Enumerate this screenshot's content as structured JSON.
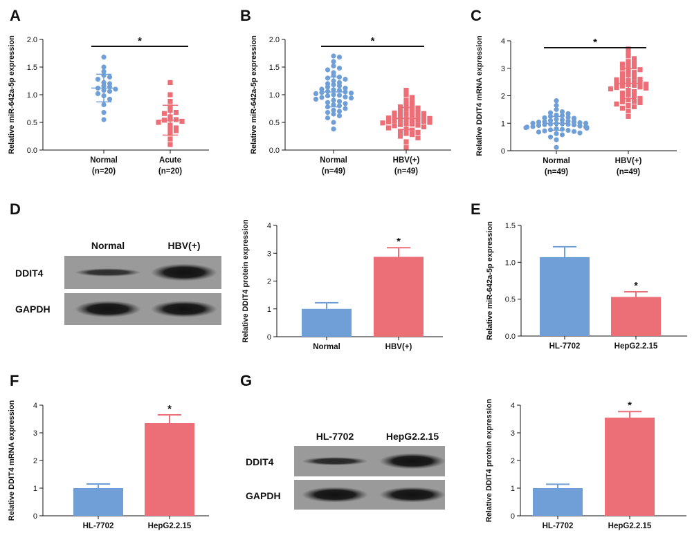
{
  "colors": {
    "blue": "#6f9fd6",
    "red": "#ec6f78",
    "axis": "#111111"
  },
  "panel_letters": [
    "A",
    "B",
    "C",
    "D",
    "E",
    "F",
    "G"
  ],
  "blots": [
    {
      "panel": "D",
      "lane_labels": [
        "Normal",
        "HBV(+)"
      ],
      "row_labels": [
        "DDIT4",
        "GAPDH"
      ],
      "band_intensity": [
        [
          0.45,
          0.95
        ],
        [
          0.95,
          0.95
        ]
      ]
    },
    {
      "panel": "G",
      "lane_labels": [
        "HL-7702",
        "HepG2.2.15"
      ],
      "row_labels": [
        "DDIT4",
        "GAPDH"
      ],
      "band_intensity": [
        [
          0.5,
          0.95
        ],
        [
          0.95,
          0.95
        ]
      ]
    }
  ],
  "chart_data": [
    {
      "panel": "A",
      "type": "scatter",
      "ylabel": "Relative miR-642a-5p expression",
      "ylim": [
        0,
        2.0
      ],
      "yticks": [
        "0.0",
        "0.5",
        "1.0",
        "1.5",
        "2.0"
      ],
      "categories": [
        "Normal\n(n=20)",
        "Acute\n(n=20)"
      ],
      "significance": "*",
      "series": [
        {
          "category": "Normal (n=20)",
          "color": "blue",
          "marker": "circle",
          "mean": 1.12,
          "sd": 0.25,
          "values": [
            1.68,
            1.5,
            1.42,
            1.35,
            1.32,
            1.28,
            1.22,
            1.2,
            1.16,
            1.14,
            1.12,
            1.1,
            1.08,
            1.06,
            1.02,
            0.98,
            0.92,
            0.82,
            0.68,
            0.55
          ]
        },
        {
          "category": "Acute (n=20)",
          "color": "red",
          "marker": "square",
          "mean": 0.54,
          "sd": 0.27,
          "values": [
            1.22,
            1.0,
            0.88,
            0.78,
            0.72,
            0.68,
            0.66,
            0.6,
            0.56,
            0.55,
            0.54,
            0.52,
            0.5,
            0.45,
            0.4,
            0.38,
            0.35,
            0.3,
            0.2,
            0.1
          ]
        }
      ]
    },
    {
      "panel": "B",
      "type": "scatter",
      "ylabel": "Relative miR-642a-5p expression",
      "ylim": [
        0,
        2.0
      ],
      "yticks": [
        "0.0",
        "0.5",
        "1.0",
        "1.5",
        "2.0"
      ],
      "categories": [
        "Normal\n(n=49)",
        "HBV(+)\n(n=49)"
      ],
      "significance": "*",
      "series": [
        {
          "category": "Normal (n=49)",
          "color": "blue",
          "marker": "circle",
          "mean": 1.05,
          "sd": 0.27,
          "values": [
            1.7,
            1.68,
            1.6,
            1.52,
            1.48,
            1.45,
            1.4,
            1.35,
            1.32,
            1.3,
            1.28,
            1.25,
            1.22,
            1.2,
            1.18,
            1.16,
            1.14,
            1.12,
            1.1,
            1.09,
            1.08,
            1.06,
            1.05,
            1.04,
            1.03,
            1.02,
            1.0,
            0.99,
            0.98,
            0.96,
            0.95,
            0.94,
            0.92,
            0.9,
            0.88,
            0.86,
            0.84,
            0.82,
            0.8,
            0.78,
            0.75,
            0.72,
            0.7,
            0.68,
            0.65,
            0.62,
            0.58,
            0.5,
            0.38
          ]
        },
        {
          "category": "HBV(+) (n=49)",
          "color": "red",
          "marker": "square",
          "mean": 0.57,
          "sd": 0.2,
          "values": [
            1.08,
            1.0,
            0.95,
            0.9,
            0.86,
            0.82,
            0.8,
            0.78,
            0.76,
            0.74,
            0.72,
            0.7,
            0.68,
            0.67,
            0.66,
            0.65,
            0.64,
            0.62,
            0.61,
            0.6,
            0.59,
            0.58,
            0.57,
            0.56,
            0.55,
            0.55,
            0.54,
            0.53,
            0.52,
            0.51,
            0.5,
            0.49,
            0.48,
            0.47,
            0.46,
            0.45,
            0.44,
            0.42,
            0.4,
            0.38,
            0.36,
            0.34,
            0.32,
            0.3,
            0.28,
            0.25,
            0.22,
            0.15,
            0.05
          ]
        }
      ]
    },
    {
      "panel": "C",
      "type": "scatter",
      "ylabel": "Relative DDIT4 mRNA expression",
      "ylim": [
        0,
        4
      ],
      "yticks": [
        "0",
        "1",
        "2",
        "3",
        "4"
      ],
      "categories": [
        "Normal\n(n=49)",
        "HBV(+)\n(n=49)"
      ],
      "significance": "*",
      "series": [
        {
          "category": "Normal (n=49)",
          "color": "blue",
          "marker": "circle",
          "mean": 1.0,
          "sd": 0.25,
          "values": [
            1.82,
            1.65,
            1.5,
            1.42,
            1.38,
            1.35,
            1.3,
            1.28,
            1.25,
            1.22,
            1.2,
            1.18,
            1.15,
            1.12,
            1.1,
            1.08,
            1.06,
            1.05,
            1.04,
            1.02,
            1.0,
            1.0,
            0.99,
            0.98,
            0.97,
            0.96,
            0.95,
            0.94,
            0.92,
            0.9,
            0.88,
            0.87,
            0.86,
            0.85,
            0.84,
            0.82,
            0.8,
            0.78,
            0.76,
            0.74,
            0.72,
            0.7,
            0.68,
            0.65,
            0.62,
            0.58,
            0.5,
            0.4,
            0.12
          ]
        },
        {
          "category": "HBV(+) (n=49)",
          "color": "red",
          "marker": "square",
          "mean": 2.45,
          "sd": 0.55,
          "values": [
            3.7,
            3.55,
            3.45,
            3.35,
            3.25,
            3.2,
            3.15,
            3.1,
            3.05,
            3.0,
            2.95,
            2.9,
            2.85,
            2.8,
            2.75,
            2.7,
            2.65,
            2.6,
            2.58,
            2.55,
            2.52,
            2.5,
            2.48,
            2.45,
            2.42,
            2.4,
            2.38,
            2.35,
            2.32,
            2.3,
            2.28,
            2.25,
            2.2,
            2.15,
            2.1,
            2.05,
            2.0,
            1.95,
            1.9,
            1.85,
            1.8,
            1.78,
            1.75,
            1.7,
            1.65,
            1.6,
            1.55,
            1.45,
            1.25
          ]
        }
      ]
    },
    {
      "panel": "D",
      "type": "bar",
      "ylabel": "Relative DDIT4 protein expression",
      "ylim": [
        0,
        4
      ],
      "yticks": [
        "0",
        "1",
        "2",
        "3",
        "4"
      ],
      "categories": [
        "Normal",
        "HBV(+)"
      ],
      "values": [
        1.0,
        2.87
      ],
      "errors": [
        0.22,
        0.33
      ],
      "colors": [
        "blue",
        "red"
      ],
      "significance": "*"
    },
    {
      "panel": "E",
      "type": "bar",
      "ylabel": "Relative miR-642a-5p expression",
      "ylim": [
        0,
        1.5
      ],
      "yticks": [
        "0.0",
        "0.5",
        "1.0",
        "1.5"
      ],
      "categories": [
        "HL-7702",
        "HepG2.2.15"
      ],
      "values": [
        1.07,
        0.53
      ],
      "errors": [
        0.14,
        0.07
      ],
      "colors": [
        "blue",
        "red"
      ],
      "significance": "*"
    },
    {
      "panel": "F",
      "type": "bar",
      "ylabel": "Relative DDIT4 mRNA expression",
      "ylim": [
        0,
        4
      ],
      "yticks": [
        "0",
        "1",
        "2",
        "3",
        "4"
      ],
      "categories": [
        "HL-7702",
        "HepG2.2.15"
      ],
      "values": [
        1.0,
        3.35
      ],
      "errors": [
        0.15,
        0.3
      ],
      "colors": [
        "blue",
        "red"
      ],
      "significance": "*"
    },
    {
      "panel": "G",
      "type": "bar",
      "ylabel": "Relative DDIT4 protein expression",
      "ylim": [
        0,
        4
      ],
      "yticks": [
        "0",
        "1",
        "2",
        "3",
        "4"
      ],
      "categories": [
        "HL-7702",
        "HepG2.2.15"
      ],
      "values": [
        1.0,
        3.55
      ],
      "errors": [
        0.14,
        0.22
      ],
      "colors": [
        "blue",
        "red"
      ],
      "significance": "*"
    }
  ]
}
